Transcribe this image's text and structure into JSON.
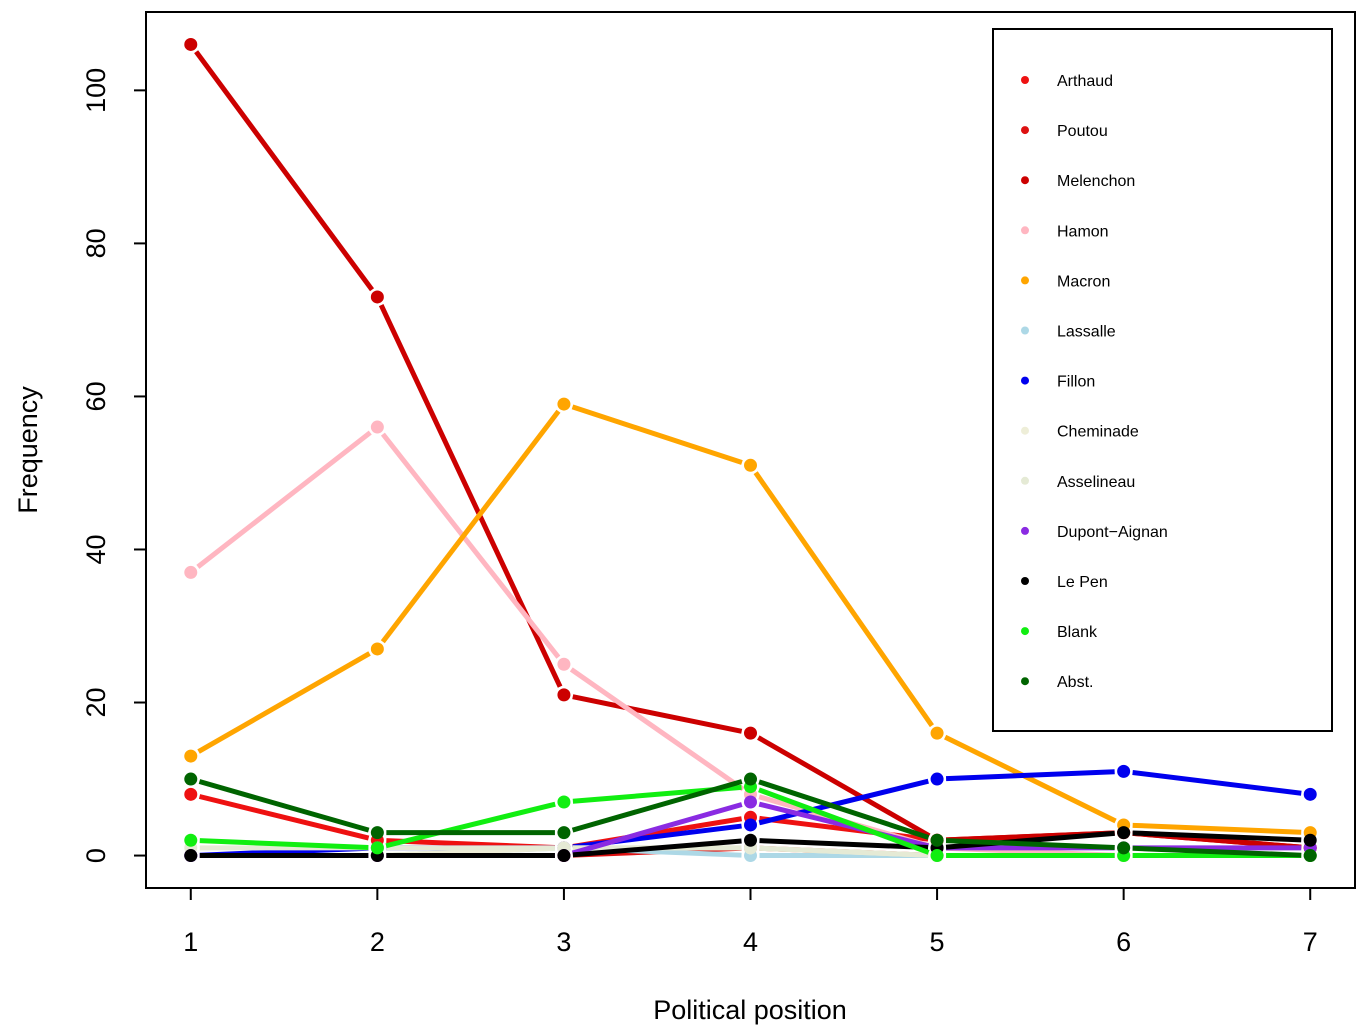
{
  "chart_data": {
    "type": "line",
    "title": "",
    "xlabel": "Political position",
    "ylabel": "Frequency",
    "x": [
      1,
      2,
      3,
      4,
      5,
      6,
      7
    ],
    "xlim": [
      0.76,
      7.24
    ],
    "ylim": [
      -4.24,
      110.24
    ],
    "x_ticks": [
      "1",
      "2",
      "3",
      "4",
      "5",
      "6",
      "7"
    ],
    "y_ticks": [
      "0",
      "20",
      "40",
      "60",
      "80",
      "100"
    ],
    "y_tick_values": [
      0,
      20,
      40,
      60,
      80,
      100
    ],
    "grid": false,
    "legend_position": "top-right",
    "series": [
      {
        "name": "Arthaud",
        "color": "#ee1111",
        "values": [
          8,
          2,
          1,
          5,
          2,
          3,
          1
        ]
      },
      {
        "name": "Poutou",
        "color": "#dd1111",
        "values": [
          0,
          0,
          0,
          1,
          0,
          0,
          0
        ]
      },
      {
        "name": "Melenchon",
        "color": "#cc0000",
        "values": [
          106,
          73,
          21,
          16,
          2,
          3,
          1
        ]
      },
      {
        "name": "Hamon",
        "color": "#ffb6c1",
        "values": [
          37,
          56,
          25,
          8,
          1,
          0,
          0
        ]
      },
      {
        "name": "Macron",
        "color": "#ffa500",
        "values": [
          13,
          27,
          59,
          51,
          16,
          4,
          3
        ]
      },
      {
        "name": "Lassalle",
        "color": "#add8e6",
        "values": [
          0,
          0,
          1,
          0,
          0,
          0,
          0
        ]
      },
      {
        "name": "Fillon",
        "color": "#0000ee",
        "values": [
          0,
          1,
          1,
          4,
          10,
          11,
          8
        ]
      },
      {
        "name": "Cheminade",
        "color": "#eeeed8",
        "values": [
          0,
          0,
          1,
          1,
          0,
          0,
          0
        ]
      },
      {
        "name": "Asselineau",
        "color": "#e5ead5",
        "values": [
          1,
          1,
          1,
          1,
          0,
          0,
          0
        ]
      },
      {
        "name": "Dupont−Aignan",
        "color": "#8a2be2",
        "values": [
          0,
          0,
          0,
          7,
          1,
          1,
          1
        ]
      },
      {
        "name": "Le Pen",
        "color": "#000000",
        "values": [
          0,
          0,
          0,
          2,
          1,
          3,
          2
        ]
      },
      {
        "name": "Blank",
        "color": "#11ee11",
        "values": [
          2,
          1,
          7,
          9,
          0,
          0,
          0
        ]
      },
      {
        "name": "Abst.",
        "color": "#006400",
        "values": [
          10,
          3,
          3,
          10,
          2,
          1,
          0
        ]
      }
    ]
  }
}
